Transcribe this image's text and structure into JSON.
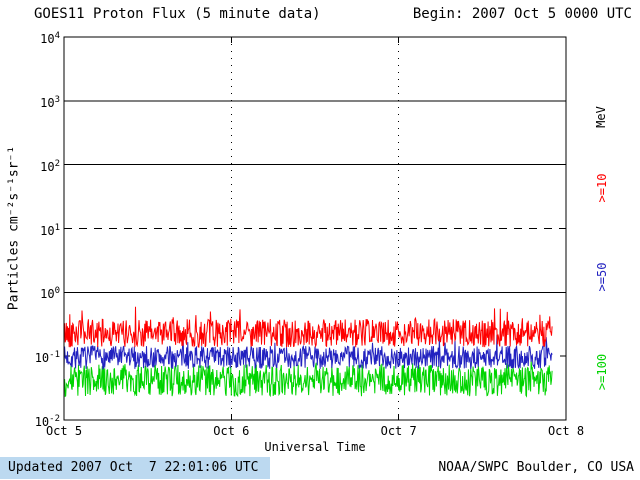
{
  "header": {
    "title": "GOES11 Proton Flux (5 minute data)",
    "begin": "Begin: 2007 Oct 5 0000 UTC"
  },
  "footer": {
    "updated": "Updated 2007 Oct  7 22:01:06 UTC",
    "source": "NOAA/SWPC Boulder, CO USA",
    "updated_bg": "#bcd9f0"
  },
  "chart_data": {
    "type": "line",
    "title": "GOES11 Proton Flux (5 minute data)",
    "xlabel": "Universal Time",
    "ylabel": "Particles cm⁻²s⁻¹sr⁻¹",
    "legend_title": "MeV",
    "x_ticks": [
      "Oct 5",
      "Oct 6",
      "Oct 7",
      "Oct 8"
    ],
    "x_range_days": [
      0,
      3
    ],
    "y_log_range": [
      -2,
      4
    ],
    "y_tick_exponents": [
      4,
      3,
      2,
      1,
      0,
      -1,
      -2
    ],
    "grid": {
      "solid_lines_log": [
        3,
        2,
        0
      ],
      "dashed_lines_log": [
        1
      ],
      "dotted_vertical_days": [
        1,
        2
      ]
    },
    "axis_color": "#000000",
    "sample_interval_minutes": 5,
    "data_end_day": 2.917,
    "series": [
      {
        "name": ">=10",
        "energy_mev": 10,
        "color": "#ff0000",
        "base_log10": -0.64,
        "noise_log10": 0.22,
        "spike_prob": 0.08,
        "spike_log10": 0.25,
        "seed": 42
      },
      {
        "name": ">=50",
        "energy_mev": 50,
        "color": "#2222c0",
        "base_log10": -1.02,
        "noise_log10": 0.18,
        "spike_prob": 0.05,
        "spike_log10": 0.22,
        "seed": 7
      },
      {
        "name": ">=100",
        "energy_mev": 100,
        "color": "#00d400",
        "base_log10": -1.38,
        "noise_log10": 0.25,
        "spike_prob": 0.05,
        "spike_log10": 0.16,
        "seed": 99
      }
    ]
  }
}
